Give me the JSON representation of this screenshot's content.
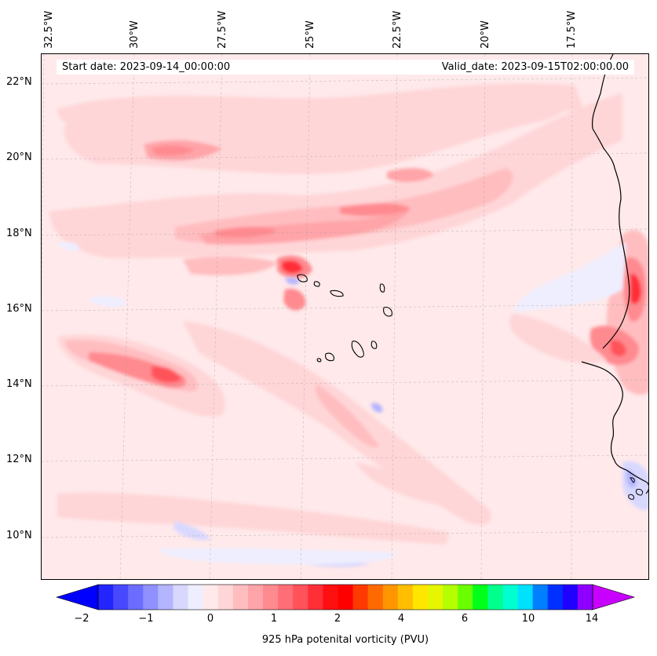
{
  "map": {
    "lon_labels": [
      "32.5°W",
      "30°W",
      "27.5°W",
      "25°W",
      "22.5°W",
      "20°W",
      "17.5°W"
    ],
    "lat_labels": [
      "22°N",
      "20°N",
      "18°N",
      "16°N",
      "14°N",
      "12°N",
      "10°N"
    ],
    "start_date": "Start date: 2023-09-14_00:00:00",
    "valid_date": "Valid_date: 2023-09-15T02:00:00.00",
    "extent": {
      "lon_min": -32.7,
      "lon_max": -16.0,
      "lat_min": 8.9,
      "lat_max": 22.8
    }
  },
  "colorbar": {
    "title": "925 hPa potenital vorticity (PVU)",
    "tick_labels": [
      "−2",
      "−1",
      "0",
      "1",
      "2",
      "4",
      "6",
      "10",
      "14"
    ],
    "levels": [
      -2,
      -1.75,
      -1.5,
      -1.25,
      -1,
      -0.75,
      -0.5,
      -0.25,
      0,
      0.25,
      0.5,
      0.75,
      1,
      1.25,
      1.5,
      1.75,
      2,
      2.5,
      3,
      3.5,
      4,
      4.5,
      5,
      5.5,
      6,
      7,
      8,
      9,
      10,
      11,
      12,
      13,
      14
    ],
    "colors": [
      "#0000ff",
      "#2424ff",
      "#4848ff",
      "#6c6cff",
      "#9090ff",
      "#b4b4ff",
      "#d8d8ff",
      "#eeeeff",
      "#ffe9ea",
      "#ffd6d8",
      "#ffbdc0",
      "#ffa4a8",
      "#ff8a90",
      "#ff6e76",
      "#ff525a",
      "#ff2f38",
      "#ff1010",
      "#ff0000",
      "#ff3a00",
      "#ff6a00",
      "#ff9600",
      "#ffbf00",
      "#ffe600",
      "#e6f500",
      "#b4ff00",
      "#6aff00",
      "#00ff1a",
      "#00ff8c",
      "#00ffd0",
      "#00e0ff",
      "#0080ff",
      "#0030ff",
      "#2000ff",
      "#9000ff",
      "#c800ff"
    ]
  }
}
